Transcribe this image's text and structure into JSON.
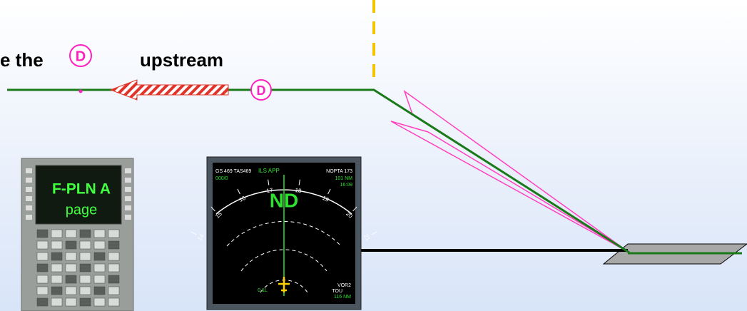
{
  "instruction": {
    "prefix": "e the",
    "symbol": "D",
    "suffix": "upstream"
  },
  "marker_label": "D",
  "mcdu": {
    "line1": "F-PLN A",
    "line2": "page"
  },
  "nd": {
    "label": "ND",
    "top_left": "GS 469 TAS469",
    "mode": "ILS APP",
    "top_right": "NOPTA 173",
    "wind": "000/0",
    "distance": "101 NM",
    "time": "16:09",
    "headings": [
      "14",
      "15",
      "16",
      "17",
      "18",
      "19",
      "20",
      "21"
    ],
    "bottom_left": "0.1L",
    "bottom_right_1": "VOR2",
    "bottom_right_2": "TOU",
    "bottom_right_3": "116 NM"
  }
}
